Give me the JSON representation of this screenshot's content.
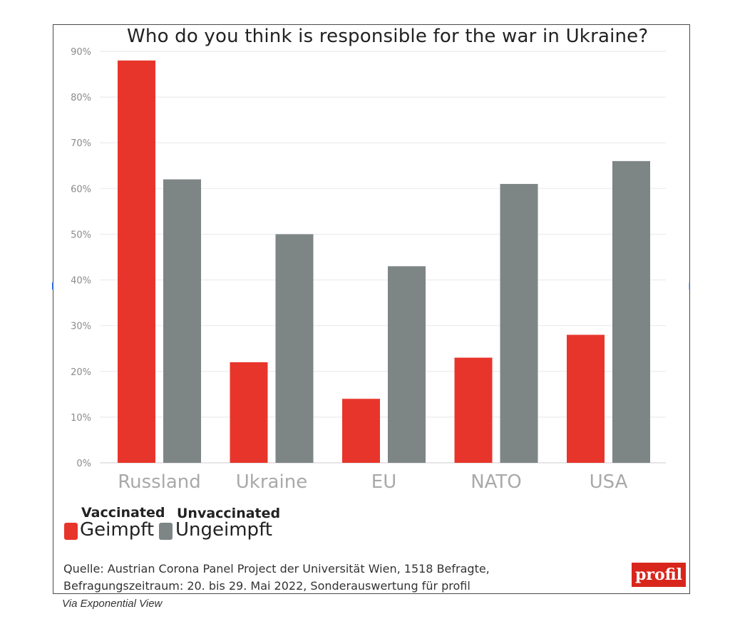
{
  "chart_data": {
    "type": "bar",
    "title": "Who do you think is responsible for the war in Ukraine?",
    "categories": [
      "Russland",
      "Ukraine",
      "EU",
      "NATO",
      "USA"
    ],
    "series": [
      {
        "name": "Geimpft",
        "name_en": "Vaccinated",
        "color": "#e8352b",
        "values": [
          88,
          22,
          14,
          23,
          28
        ]
      },
      {
        "name": "Ungeimpft",
        "name_en": "Unvaccinated",
        "color": "#7e8585",
        "values": [
          62,
          50,
          43,
          61,
          66
        ]
      }
    ],
    "ylim": [
      0,
      90
    ],
    "yticks": [
      0,
      10,
      20,
      30,
      40,
      50,
      60,
      70,
      80,
      90
    ],
    "ytick_labels": [
      "0%",
      "10%",
      "20%",
      "30%",
      "40%",
      "50%",
      "60%",
      "70%",
      "80%",
      "90%"
    ],
    "grid": true,
    "legend_position": "bottom-left"
  },
  "source": {
    "line1": "Quelle: Austrian Corona Panel Project der Universität Wien, 1518 Befragte,",
    "line2": "Befragungszeitraum: 20. bis 29. Mai 2022, Sonderauswertung für profil"
  },
  "logo": {
    "text": "profil",
    "color": "#d9261c"
  },
  "caption": "Via Exponential View"
}
